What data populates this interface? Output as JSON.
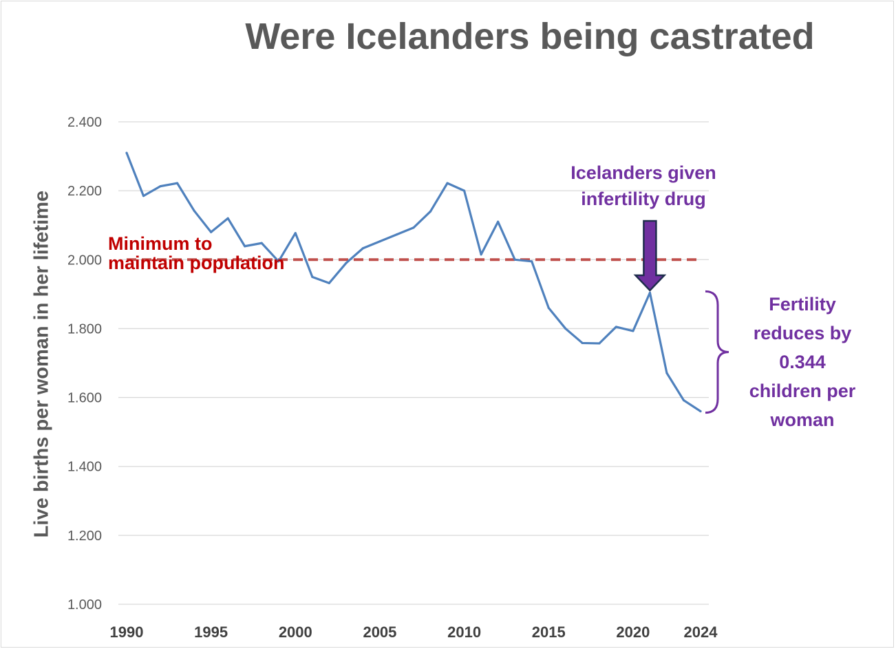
{
  "chart_data": {
    "type": "line",
    "title": "Were Icelanders being castrated",
    "xlabel": "",
    "ylabel": "Live births per woman in her lifetime",
    "xlim": [
      1990,
      2024
    ],
    "ylim": [
      1.0,
      2.4
    ],
    "x_ticks": [
      "1990",
      "1995",
      "2000",
      "2005",
      "2010",
      "2015",
      "2020",
      "2024"
    ],
    "y_ticks": [
      "1.000",
      "1.200",
      "1.400",
      "1.600",
      "1.800",
      "2.000",
      "2.200",
      "2.400"
    ],
    "grid": true,
    "series": [
      {
        "name": "",
        "color": "#4f81bd",
        "x": [
          1990,
          1991,
          1992,
          1993,
          1994,
          1995,
          1996,
          1997,
          1998,
          1999,
          2000,
          2001,
          2002,
          2003,
          2004,
          2005,
          2006,
          2007,
          2008,
          2009,
          2010,
          2011,
          2012,
          2013,
          2014,
          2015,
          2016,
          2017,
          2018,
          2019,
          2020,
          2021,
          2022,
          2023,
          2024
        ],
        "values": [
          2.31,
          2.185,
          2.213,
          2.222,
          2.142,
          2.08,
          2.12,
          2.039,
          2.048,
          1.995,
          2.077,
          1.95,
          1.932,
          1.99,
          2.033,
          2.053,
          2.073,
          2.093,
          2.14,
          2.222,
          2.2,
          2.015,
          2.11,
          2.0,
          1.995,
          1.86,
          1.8,
          1.758,
          1.757,
          1.805,
          1.793,
          1.904,
          1.671,
          1.592,
          1.56
        ]
      }
    ],
    "reference_line": {
      "label": "Minimum to maintain population",
      "value": 2.0,
      "color": "#c0504d",
      "style": "dashed"
    },
    "annotations": [
      {
        "label_lines": [
          "Minimum to",
          "maintain population"
        ],
        "color": "#c00000"
      },
      {
        "label_lines": [
          "Icelanders given",
          "infertility drug"
        ],
        "color": "#7030a0",
        "points_to_x": 2021
      },
      {
        "label_lines": [
          "Fertility",
          "reduces by",
          "0.344",
          "children per",
          "woman"
        ],
        "color": "#7030a0",
        "bracket_from": 1.904,
        "bracket_to": 1.56
      }
    ]
  }
}
